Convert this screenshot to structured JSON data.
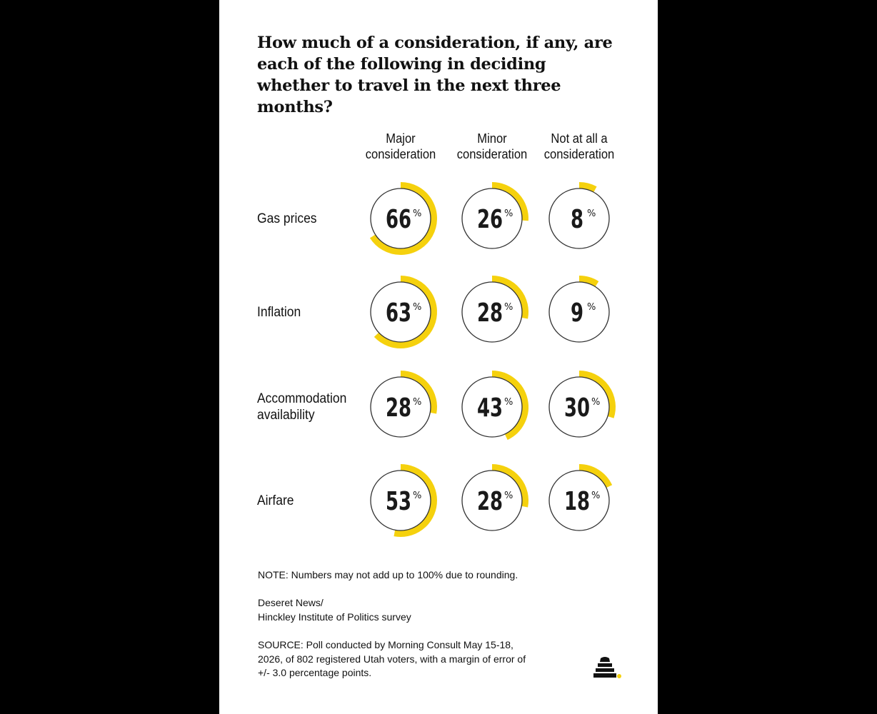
{
  "title": "How much of a consideration, if any, are each of the following in deciding whether to travel in the next three months?",
  "chart_data": {
    "type": "donut-grid",
    "columns": [
      [
        "Major",
        "consideration"
      ],
      [
        "Minor",
        "consideration"
      ],
      [
        "Not at all a",
        "consideration"
      ]
    ],
    "rows": [
      {
        "label": [
          "Gas prices"
        ],
        "values": [
          66,
          26,
          8
        ]
      },
      {
        "label": [
          "Inflation"
        ],
        "values": [
          63,
          28,
          9
        ]
      },
      {
        "label": [
          "Accommodation",
          "availability"
        ],
        "values": [
          28,
          43,
          30
        ]
      },
      {
        "label": [
          "Airfare"
        ],
        "values": [
          53,
          28,
          18
        ]
      }
    ],
    "unit": "%",
    "accent_color": "#f5d10d",
    "ring_color": "#333333"
  },
  "footer": {
    "note": "NOTE: Numbers may not add up to 100% due to rounding.",
    "credit": [
      "Deseret News/",
      "Hinckley Institute of Politics survey"
    ],
    "source": [
      "SOURCE: Poll conducted by Morning Consult May 15-18,",
      "2026, of 802 registered Utah voters, with a margin of error of",
      "+/- 3.0 percentage points."
    ]
  },
  "logo_icon": "beehive-icon"
}
